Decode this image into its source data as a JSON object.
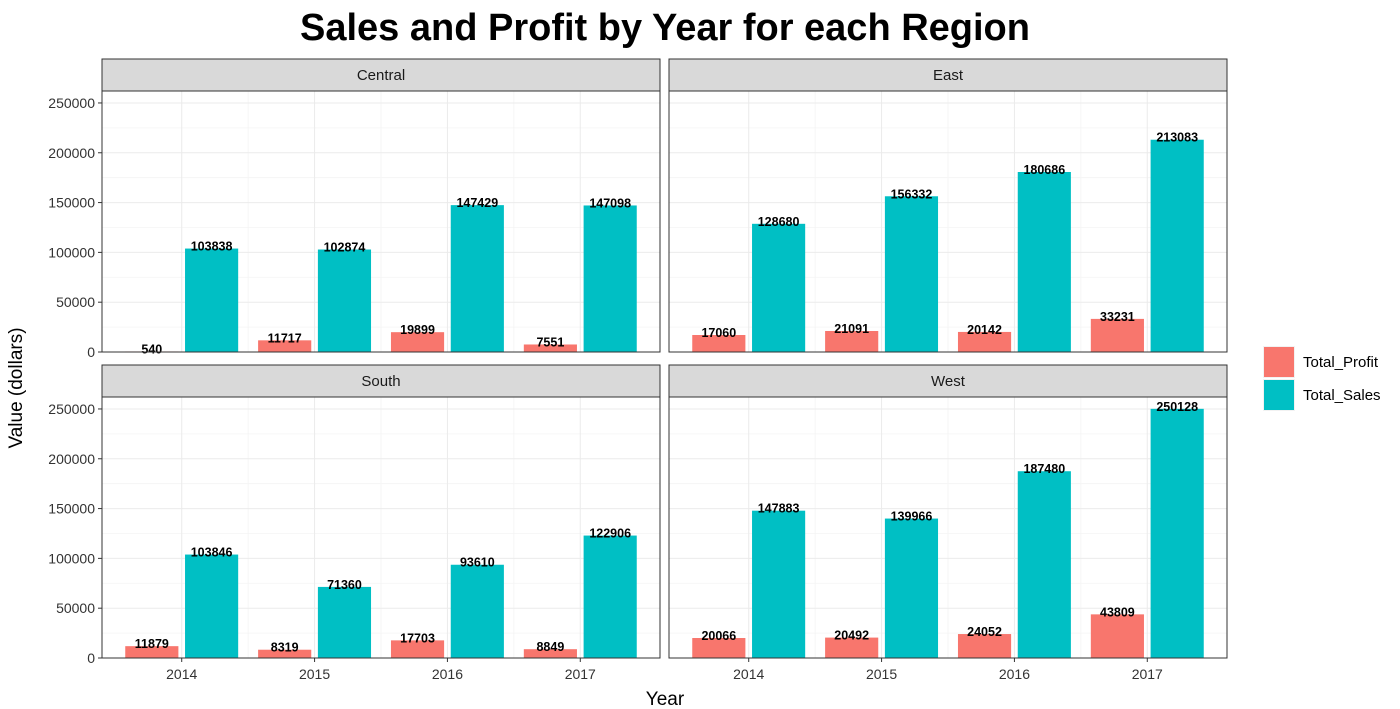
{
  "chart_data": {
    "type": "bar",
    "title": "Sales and Profit by Year for each Region",
    "xlabel": "Year",
    "ylabel": "Value (dollars)",
    "categories": [
      "2014",
      "2015",
      "2016",
      "2017"
    ],
    "ylim": [
      0,
      262000
    ],
    "yticks": [
      0,
      50000,
      100000,
      150000,
      200000,
      250000
    ],
    "grid": true,
    "legend": {
      "position": "right",
      "entries": [
        {
          "name": "Total_Profit",
          "color": "#F8766D"
        },
        {
          "name": "Total_Sales",
          "color": "#00BFC4"
        }
      ]
    },
    "colors": {
      "Total_Profit": "#F8766D",
      "Total_Sales": "#00BFC4",
      "strip_background": "#D9D9D9",
      "grid_major": "#EBEBEB",
      "grid_minor": "#F4F4F4",
      "panel_border": "#333333"
    },
    "facets": [
      {
        "name": "Central",
        "series": [
          {
            "name": "Total_Profit",
            "values": [
              540,
              11717,
              19899,
              7551
            ]
          },
          {
            "name": "Total_Sales",
            "values": [
              103838,
              102874,
              147429,
              147098
            ]
          }
        ]
      },
      {
        "name": "East",
        "series": [
          {
            "name": "Total_Profit",
            "values": [
              17060,
              21091,
              20142,
              33231
            ]
          },
          {
            "name": "Total_Sales",
            "values": [
              128680,
              156332,
              180686,
              213083
            ]
          }
        ]
      },
      {
        "name": "South",
        "series": [
          {
            "name": "Total_Profit",
            "values": [
              11879,
              8319,
              17703,
              8849
            ]
          },
          {
            "name": "Total_Sales",
            "values": [
              103846,
              71360,
              93610,
              122906
            ]
          }
        ]
      },
      {
        "name": "West",
        "series": [
          {
            "name": "Total_Profit",
            "values": [
              20066,
              20492,
              24052,
              43809
            ]
          },
          {
            "name": "Total_Sales",
            "values": [
              147883,
              139966,
              187480,
              250128
            ]
          }
        ]
      }
    ]
  }
}
